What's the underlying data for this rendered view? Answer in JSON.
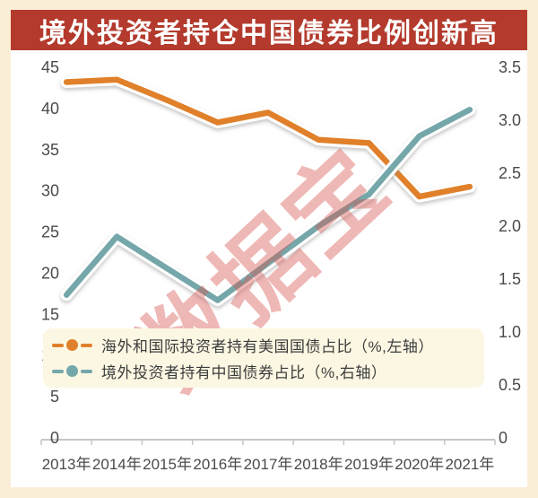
{
  "title": "境外投资者持仓中国债券比例创新高",
  "watermark": "数据宝",
  "legend": {
    "items": [
      {
        "label": "海外和国际投资者持有美国国债占比（%,左轴）"
      },
      {
        "label": "境外投资者持有中国债券占比（%,右轴）"
      }
    ]
  },
  "colors": {
    "title_bar": "#b33a2c",
    "title_text": "#ffffff",
    "background": "#fbeed6",
    "panel": "#ffffff",
    "legend_bg": "#fcf7e3",
    "watermark_pink": "#d6554f",
    "axis_line": "#c6c6c6",
    "axis_text": "#4a4a4a",
    "series_orange": "#e0802c",
    "series_teal": "#74a7aa"
  },
  "chart_data": {
    "type": "line",
    "title": "境外投资者持仓中国债券比例创新高",
    "categories": [
      "2013年",
      "2014年",
      "2015年",
      "2016年",
      "2017年",
      "2018年",
      "2019年",
      "2020年",
      "2021年"
    ],
    "series": [
      {
        "name": "海外和国际投资者持有美国国债占比（%,左轴）",
        "axis": "left",
        "color": "#e0802c",
        "values": [
          43.2,
          43.5,
          41.0,
          38.3,
          39.5,
          36.2,
          35.8,
          29.3,
          30.5
        ]
      },
      {
        "name": "境外投资者持有中国债券占比（%,右轴）",
        "axis": "right",
        "color": "#74a7aa",
        "values": [
          1.35,
          1.9,
          1.6,
          1.3,
          1.65,
          2.0,
          2.3,
          2.85,
          3.1
        ]
      }
    ],
    "left_axis": {
      "min": 0,
      "max": 45,
      "tick_values": [
        45,
        40,
        35,
        30,
        25,
        20,
        15,
        10,
        5,
        0
      ],
      "tick_labels": [
        "45",
        "40",
        "35",
        "30",
        "25",
        "20",
        "15",
        "10",
        "5",
        "0"
      ]
    },
    "right_axis": {
      "min": 0,
      "max": 3.5,
      "tick_values": [
        3.5,
        3.0,
        2.5,
        2.0,
        1.5,
        1.0,
        0.5,
        0
      ],
      "tick_labels": [
        "3.5",
        "3.0",
        "2.5",
        "2.0",
        "1.5",
        "1.0",
        "0.5",
        "0"
      ]
    },
    "grid": false,
    "legend_position": "inside-bottom-left"
  }
}
